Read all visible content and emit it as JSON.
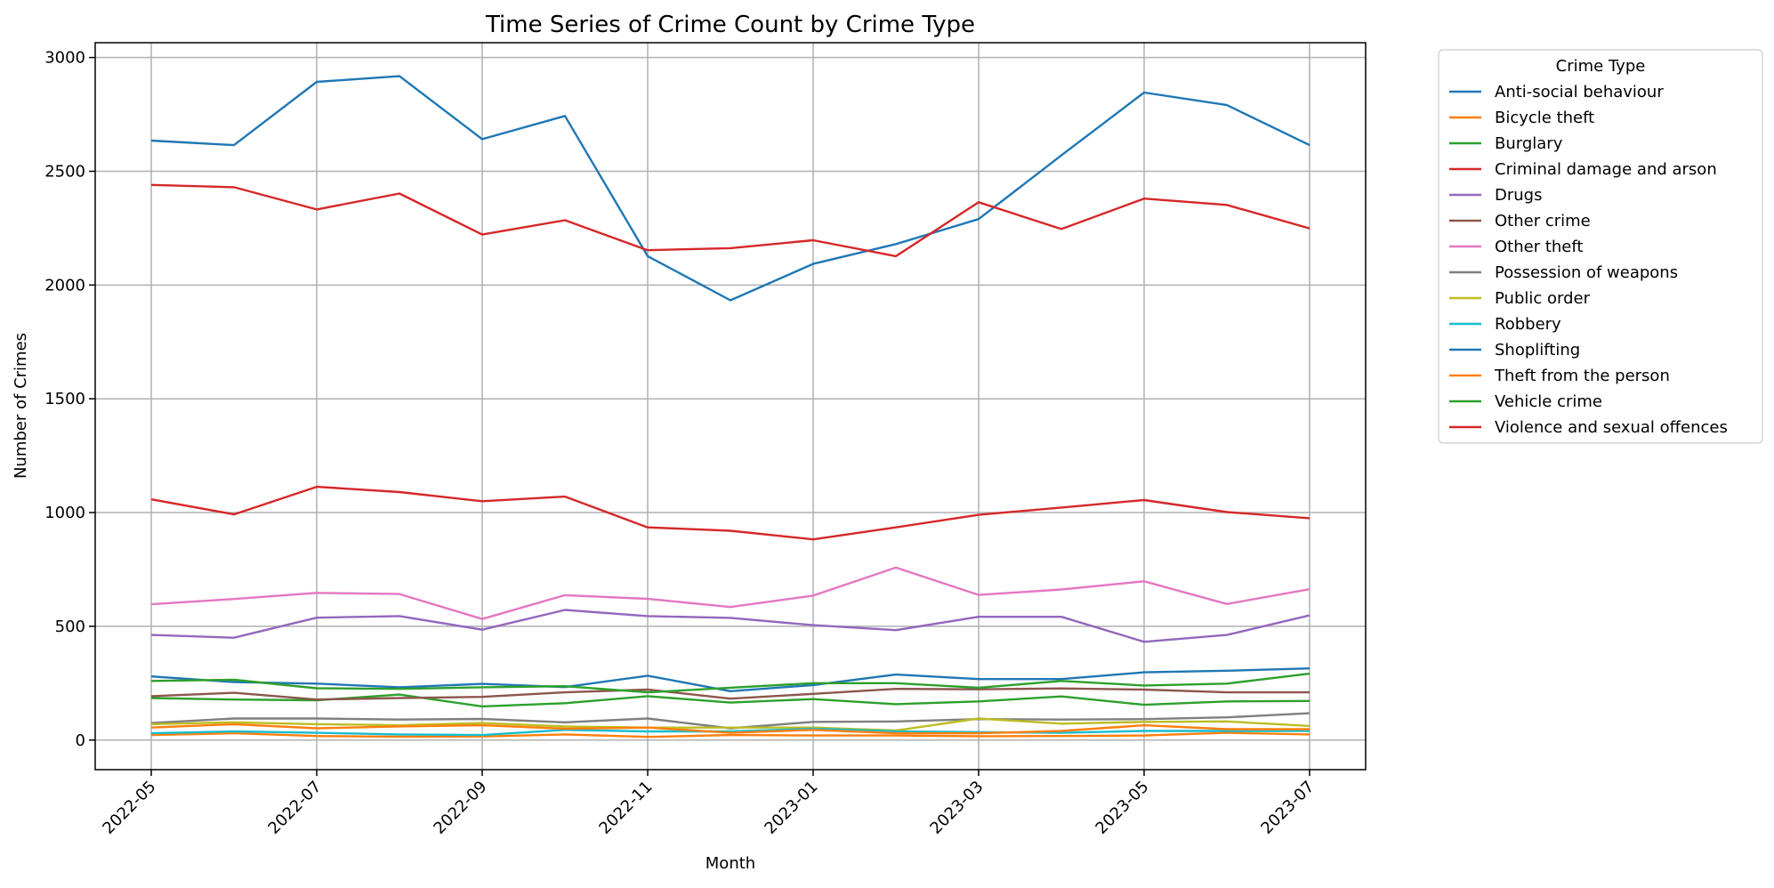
{
  "chart_data": {
    "type": "line",
    "title": "Time Series of Crime Count by Crime Type",
    "xlabel": "Month",
    "ylabel": "Number of Crimes",
    "x": [
      "2022-05",
      "2022-06",
      "2022-07",
      "2022-08",
      "2022-09",
      "2022-10",
      "2022-11",
      "2022-12",
      "2023-01",
      "2023-02",
      "2023-03",
      "2023-04",
      "2023-05",
      "2023-06",
      "2023-07"
    ],
    "x_ticks": [
      "2022-05",
      "2022-07",
      "2022-09",
      "2022-11",
      "2023-01",
      "2023-03",
      "2023-05",
      "2023-07"
    ],
    "y_ticks": [
      0,
      500,
      1000,
      1500,
      2000,
      2500,
      3000
    ],
    "ylim": [
      -130,
      3065
    ],
    "grid": true,
    "legend": {
      "title": "Crime Type",
      "placement": "outside-right"
    },
    "series": [
      {
        "name": "Anti-social behaviour",
        "color": "#1f77b4",
        "values": [
          2635,
          2615,
          2893,
          2918,
          2641,
          2743,
          2127,
          1933,
          2093,
          2180,
          2290,
          2570,
          2846,
          2791,
          2615
        ]
      },
      {
        "name": "Bicycle theft",
        "color": "#ff7f0e",
        "values": [
          22,
          30,
          18,
          15,
          16,
          25,
          14,
          22,
          20,
          20,
          17,
          18,
          20,
          32,
          25
        ]
      },
      {
        "name": "Burglary",
        "color": "#2ca02c",
        "values": [
          185,
          178,
          175,
          200,
          148,
          162,
          193,
          165,
          180,
          158,
          170,
          192,
          155,
          170,
          172
        ]
      },
      {
        "name": "Criminal damage and arson",
        "color": "#d62728",
        "values": [
          1058,
          992,
          1113,
          1090,
          1050,
          1070,
          935,
          920,
          882,
          935,
          990,
          1022,
          1055,
          1002,
          975
        ]
      },
      {
        "name": "Drugs",
        "color": "#9467bd",
        "values": [
          462,
          450,
          538,
          545,
          485,
          572,
          545,
          537,
          505,
          483,
          542,
          542,
          432,
          462,
          548
        ]
      },
      {
        "name": "Other crime",
        "color": "#8c564b",
        "values": [
          193,
          208,
          178,
          185,
          190,
          210,
          222,
          182,
          203,
          225,
          223,
          227,
          222,
          210,
          210
        ]
      },
      {
        "name": "Other theft",
        "color": "#e377c2",
        "values": [
          597,
          620,
          647,
          642,
          532,
          637,
          621,
          585,
          635,
          758,
          638,
          662,
          698,
          598,
          663
        ]
      },
      {
        "name": "Possession of weapons",
        "color": "#7f7f7f",
        "values": [
          75,
          95,
          95,
          90,
          93,
          78,
          95,
          52,
          80,
          82,
          92,
          90,
          92,
          100,
          118
        ]
      },
      {
        "name": "Public order",
        "color": "#bcbd22",
        "values": [
          70,
          78,
          70,
          65,
          75,
          60,
          55,
          55,
          55,
          42,
          95,
          72,
          80,
          82,
          62
        ]
      },
      {
        "name": "Robbery",
        "color": "#17becf",
        "values": [
          30,
          38,
          32,
          25,
          22,
          45,
          38,
          38,
          50,
          38,
          35,
          32,
          40,
          40,
          40
        ]
      },
      {
        "name": "Shoplifting",
        "color": "#1f77b4",
        "values": [
          280,
          255,
          248,
          232,
          247,
          233,
          283,
          215,
          242,
          288,
          268,
          268,
          298,
          305,
          315
        ]
      },
      {
        "name": "Theft from the person",
        "color": "#ff7f0e",
        "values": [
          55,
          70,
          52,
          60,
          65,
          50,
          55,
          32,
          45,
          30,
          30,
          40,
          65,
          48,
          48
        ]
      },
      {
        "name": "Vehicle crime",
        "color": "#2ca02c",
        "values": [
          260,
          265,
          228,
          225,
          232,
          237,
          210,
          230,
          250,
          250,
          230,
          260,
          240,
          248,
          292
        ]
      },
      {
        "name": "Violence and sexual offences",
        "color": "#d62728",
        "values": [
          2440,
          2430,
          2332,
          2402,
          2222,
          2285,
          2153,
          2162,
          2197,
          2127,
          2364,
          2246,
          2380,
          2352,
          2249
        ]
      }
    ]
  }
}
